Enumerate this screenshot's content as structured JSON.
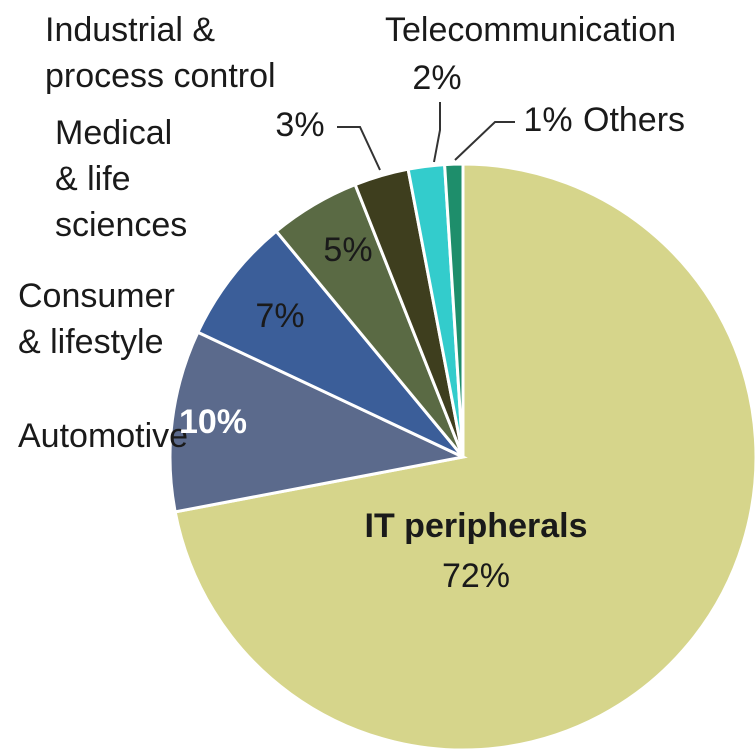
{
  "chart_data": {
    "type": "pie",
    "categories": [
      "IT peripherals",
      "Automotive",
      "Consumer\n& lifestyle",
      "Medical\n& life\nsciences",
      "Industrial &\nprocess control",
      "Telecommunication",
      "Others"
    ],
    "values": [
      72,
      10,
      7,
      5,
      3,
      2,
      1
    ],
    "value_labels": [
      "72%",
      "10%",
      "7%",
      "5%",
      "3%",
      "2%",
      "1%"
    ],
    "colors": [
      "#d6d58b",
      "#5b6a8c",
      "#3b5e99",
      "#5a6a44",
      "#3e3e1e",
      "#33cccc",
      "#1e8e6b"
    ]
  }
}
